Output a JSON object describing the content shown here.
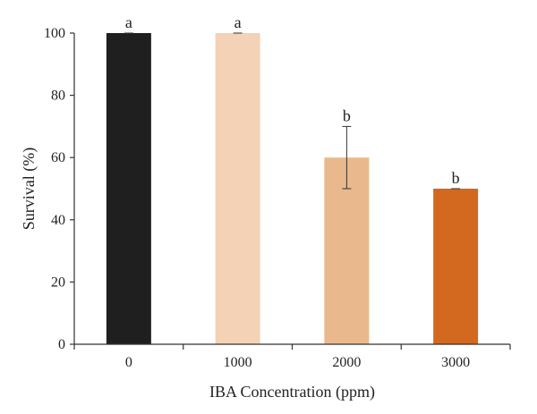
{
  "chart_data": {
    "type": "bar",
    "categories": [
      "0",
      "1000",
      "2000",
      "3000"
    ],
    "values": [
      100,
      100,
      60,
      50
    ],
    "error": [
      0,
      0,
      10,
      0
    ],
    "significance_letters": [
      "a",
      "a",
      "b",
      "b"
    ],
    "bar_colors": [
      "#1f1f1f",
      "#f3d2b5",
      "#e9b98d",
      "#d2691e"
    ],
    "xlabel": "IBA Concentration (ppm)",
    "ylabel": "Survival (%)",
    "ylim": [
      0,
      100
    ],
    "yticks": [
      0,
      20,
      40,
      60,
      80,
      100
    ],
    "grid": false,
    "legend": "none"
  }
}
